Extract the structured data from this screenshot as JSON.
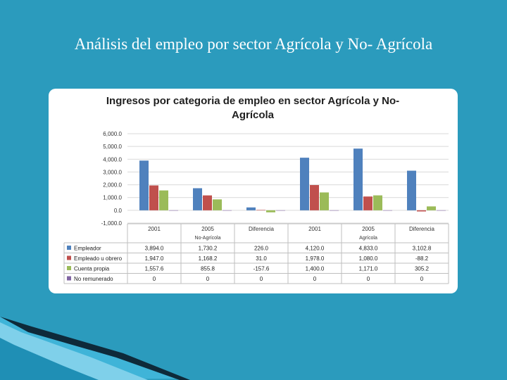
{
  "slide": {
    "title": "Análisis del empleo por sector Agrícola y No- Agrícola"
  },
  "colors": {
    "background": "#2b9bbd",
    "empleador": "#4f81bd",
    "empleado": "#c0504d",
    "cuenta_propia": "#9bbb59",
    "no_remunerado": "#8064a2"
  },
  "chart_data": {
    "type": "bar",
    "title_line1": "Ingresos por categoria de empleo en sector Agrícola y No-",
    "title_line2": "Agrícola",
    "categories": [
      "2001",
      "2005",
      "Diferencia",
      "2001",
      "2005",
      "Diferencia"
    ],
    "groups": [
      {
        "label": "No-Agrícola",
        "span": [
          0,
          3
        ]
      },
      {
        "label": "Agrícola",
        "span": [
          3,
          6
        ]
      }
    ],
    "y_ticks": [
      "6,000.0",
      "5,000.0",
      "4,000.0",
      "3,000.0",
      "2,000.0",
      "1,000.0",
      "0.0",
      "-1,000.0"
    ],
    "ylim": [
      -1000,
      6000
    ],
    "grid": true,
    "legend": "data-table",
    "series": [
      {
        "name": "Empleador",
        "color": "#4f81bd",
        "values": [
          3894.0,
          1730.2,
          226.0,
          4120.0,
          4833.0,
          3102.8
        ],
        "labels": [
          "3,894.0",
          "1,730.2",
          "226.0",
          "4,120.0",
          "4,833.0",
          "3,102.8"
        ]
      },
      {
        "name": "Empleado u obrero",
        "color": "#c0504d",
        "values": [
          1947.0,
          1168.2,
          31.0,
          1978.0,
          1080.0,
          -88.2
        ],
        "labels": [
          "1,947.0",
          "1,168.2",
          "31.0",
          "1,978.0",
          "1,080.0",
          "-88.2"
        ]
      },
      {
        "name": "Cuenta propia",
        "color": "#9bbb59",
        "values": [
          1557.6,
          855.8,
          -157.6,
          1400.0,
          1171.0,
          305.2
        ],
        "labels": [
          "1,557.6",
          "855.8",
          "-157.6",
          "1,400.0",
          "1,171.0",
          "305.2"
        ]
      },
      {
        "name": "No remunerado",
        "color": "#8064a2",
        "values": [
          0,
          0,
          0,
          0,
          0,
          0
        ],
        "labels": [
          "0",
          "0",
          "0",
          "0",
          "0",
          "0"
        ]
      }
    ]
  }
}
